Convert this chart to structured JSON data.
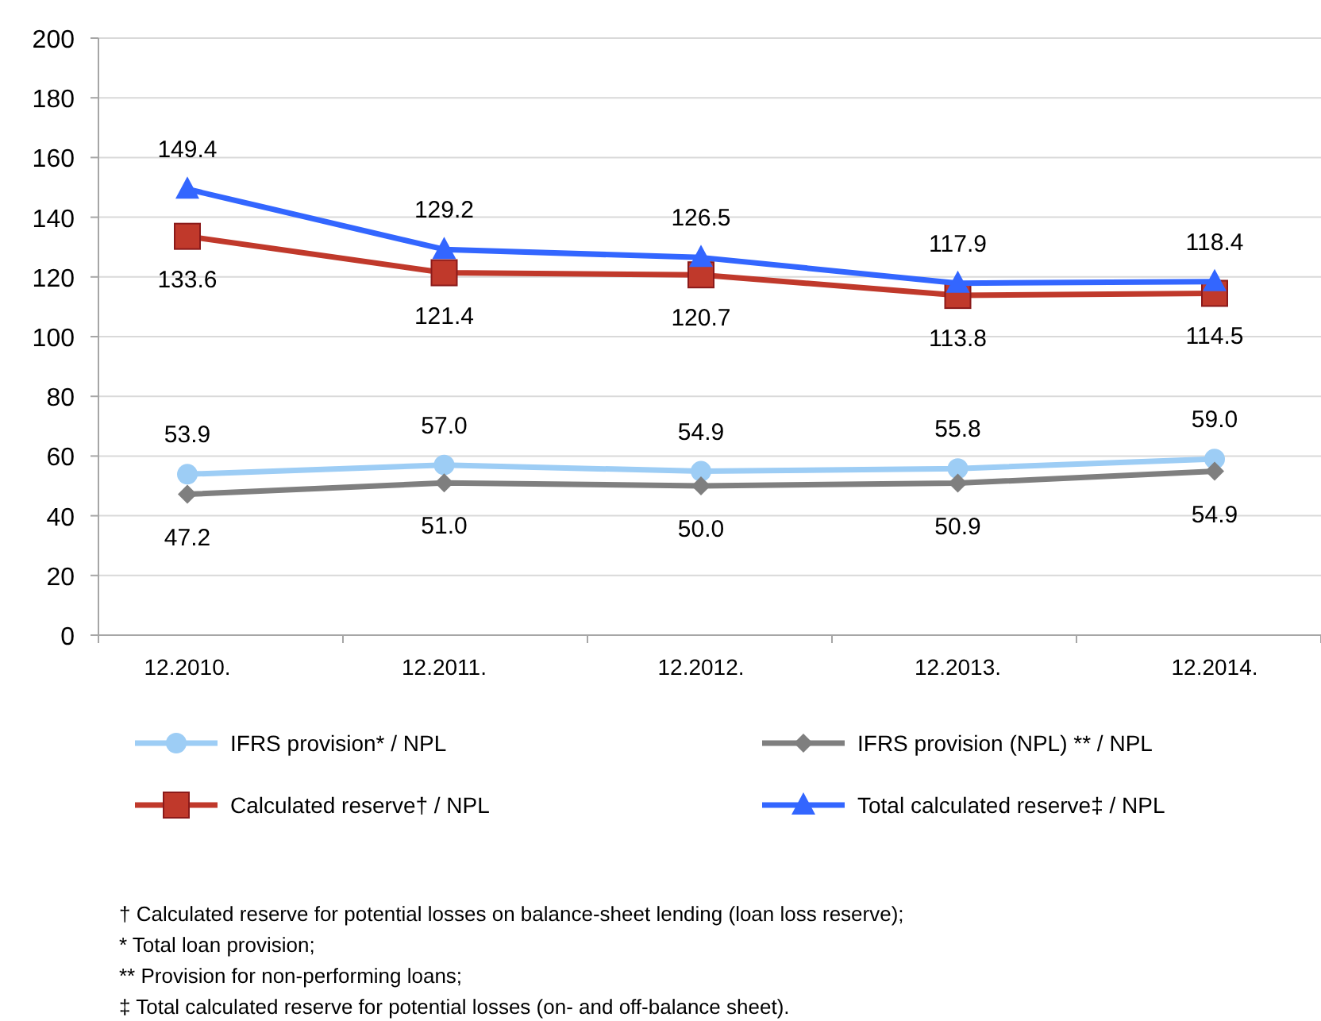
{
  "chart_data": {
    "type": "line",
    "categories": [
      "12.2010.",
      "12.2011.",
      "12.2012.",
      "12.2013.",
      "12.2014."
    ],
    "ylim": [
      0,
      200
    ],
    "yticks": [
      0,
      20,
      40,
      60,
      80,
      100,
      120,
      140,
      160,
      180,
      200
    ],
    "grid": "y",
    "legend": "bottom",
    "series": [
      {
        "name": "IFRS provision* / NPL",
        "color": "#9dcdf5",
        "marker": "circle",
        "values": [
          53.9,
          57.0,
          54.9,
          55.8,
          59.0
        ],
        "value_labels": [
          "53.9",
          "57.0",
          "54.9",
          "55.8",
          "59.0"
        ]
      },
      {
        "name": "IFRS provision (NPL) ** / NPL",
        "color": "#7f7f7f",
        "marker": "diamond",
        "values": [
          47.2,
          51.0,
          50.0,
          50.9,
          54.9
        ],
        "value_labels": [
          "47.2",
          "51.0",
          "50.0",
          "50.9",
          "54.9"
        ]
      },
      {
        "name": "Calculated reserve† / NPL",
        "color": "#c0392b",
        "marker": "square",
        "values": [
          133.6,
          121.4,
          120.7,
          113.8,
          114.5
        ],
        "value_labels": [
          "133.6",
          "121.4",
          "120.7",
          "113.8",
          "114.5"
        ]
      },
      {
        "name": "Total calculated reserve‡ / NPL",
        "color": "#3366ff",
        "marker": "triangle",
        "values": [
          149.4,
          129.2,
          126.5,
          117.9,
          118.4
        ],
        "value_labels": [
          "149.4",
          "129.2",
          "126.5",
          "117.9",
          "118.4"
        ]
      }
    ],
    "annotations": [
      "† Calculated reserve for potential losses on balance-sheet lending (loan loss reserve);",
      "* Total loan provision;",
      "** Provision for non-performing loans;",
      "‡ Total calculated reserve for potential losses (on- and off-balance sheet)."
    ]
  }
}
